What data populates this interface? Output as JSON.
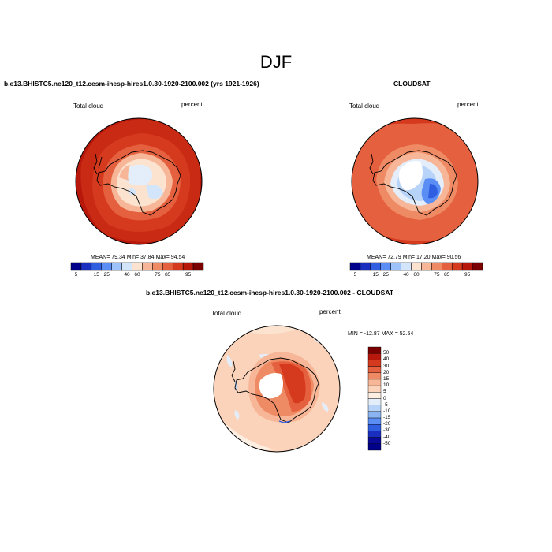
{
  "title": "DJF",
  "panel_left": {
    "subtitle": "b.e13.BHISTC5.ne120_t12.cesm-ihesp-hires1.0.30-1920-2100.002 (yrs 1921-1926)",
    "left_label": "Total cloud",
    "right_label": "percent",
    "stats": "MEAN=  79.34  Min=  37.84  Max=  94.54"
  },
  "panel_right": {
    "subtitle": "CLOUDSAT",
    "left_label": "Total cloud",
    "right_label": "percent",
    "stats": "MEAN=  72.79  Min=  17.20  Max=  90.56"
  },
  "panel_diff": {
    "subtitle": "b.e13.BHISTC5.ne120_t12.cesm-ihesp-hires1.0.30-1920-2100.002 - CLOUDSAT",
    "left_label": "Total cloud",
    "right_label": "percent",
    "stats": "MIN = -12.87 MAX =  52.54"
  },
  "colorbar_abs": {
    "tick_labels": [
      "5",
      "15",
      "25",
      "40",
      "60",
      "75",
      "85",
      "95"
    ],
    "colors": [
      "#00008a",
      "#1a2fbf",
      "#2f5fe0",
      "#5a8ef5",
      "#9ec3fb",
      "#d3e5fb",
      "#fbe3d0",
      "#f6b697",
      "#ee8a64",
      "#e5603e",
      "#d63a1e",
      "#b8180c",
      "#7a0000"
    ]
  },
  "colorbar_diff": {
    "tick_labels": [
      "50",
      "40",
      "30",
      "20",
      "15",
      "10",
      "5",
      "0",
      "-5",
      "-10",
      "-15",
      "-20",
      "-30",
      "-40",
      "-50"
    ],
    "colors": [
      "#7a0000",
      "#b8180c",
      "#d63a1e",
      "#e5603e",
      "#ee8a64",
      "#f6b697",
      "#fbd3ba",
      "#fdeee2",
      "#e4eefb",
      "#b8d3f8",
      "#8ab3f2",
      "#5a8ef5",
      "#2f5fe0",
      "#1a2fbf",
      "#0a0a9a",
      "#00008a"
    ]
  }
}
